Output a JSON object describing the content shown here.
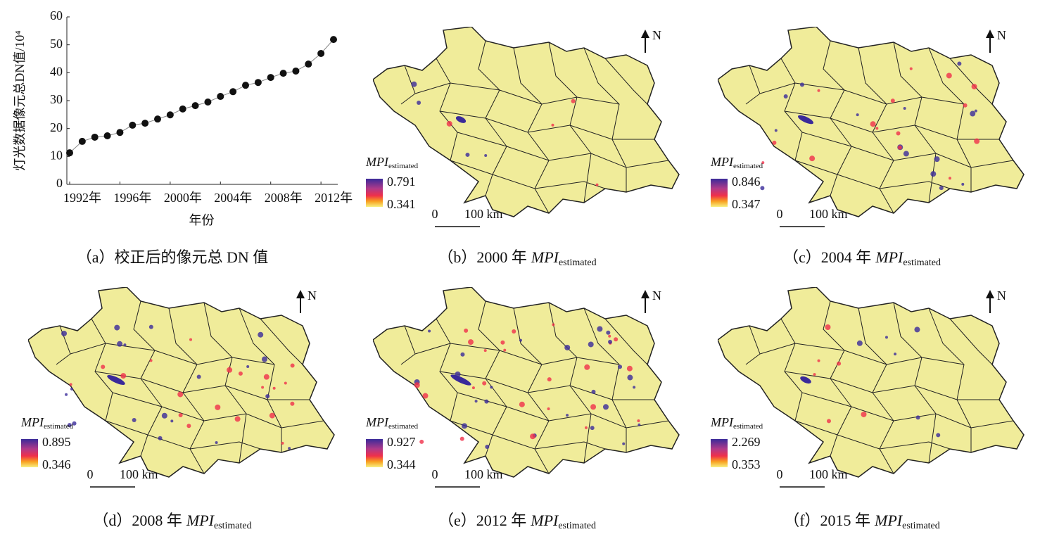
{
  "chart_data": {
    "type": "line",
    "y_label": "灯光数据像元总DN值/10⁴",
    "x_label": "年份",
    "caption": "（a）校正后的像元总 DN 值",
    "x": [
      1992,
      1993,
      1994,
      1995,
      1996,
      1997,
      1998,
      1999,
      2000,
      2001,
      2002,
      2003,
      2004,
      2005,
      2006,
      2007,
      2008,
      2009,
      2010,
      2011,
      2012,
      2013
    ],
    "values": [
      11.3,
      15.4,
      16.9,
      17.4,
      18.6,
      21.2,
      21.9,
      23.4,
      24.9,
      27.0,
      28.2,
      29.5,
      31.5,
      33.2,
      35.5,
      36.5,
      38.3,
      39.8,
      40.6,
      43.1,
      46.9,
      51.9
    ],
    "color": "#111111",
    "xlim": [
      1992,
      2013
    ],
    "ylim": [
      0,
      60
    ],
    "yticks": [
      0,
      10,
      20,
      30,
      40,
      50,
      60
    ],
    "xticks": [
      {
        "value": 1992,
        "label": "1992年"
      },
      {
        "value": 1996,
        "label": "1996年"
      },
      {
        "value": 2000,
        "label": "2000年"
      },
      {
        "value": 2004,
        "label": "2004年"
      },
      {
        "value": 2008,
        "label": "2008年"
      },
      {
        "value": 2012,
        "label": "2012年"
      }
    ]
  },
  "maps": [
    {
      "caption_prefix": "（b）2000 年",
      "caption_var": "MPI",
      "caption_sub": "estimated",
      "legend_var": "MPI",
      "legend_sub": "estimated",
      "max": 0.791,
      "min": 0.341,
      "scale_zero": "0",
      "scale_label": "100 km",
      "north": "N"
    },
    {
      "caption_prefix": "（c）2004 年",
      "caption_var": "MPI",
      "caption_sub": "estimated",
      "legend_var": "MPI",
      "legend_sub": "estimated",
      "max": 0.846,
      "min": 0.347,
      "scale_zero": "0",
      "scale_label": "100 km",
      "north": "N"
    },
    {
      "caption_prefix": "（d）2008 年",
      "caption_var": "MPI",
      "caption_sub": "estimated",
      "legend_var": "MPI",
      "legend_sub": "estimated",
      "max": 0.895,
      "min": 0.346,
      "scale_zero": "0",
      "scale_label": "100 km",
      "north": "N"
    },
    {
      "caption_prefix": "（e）2012 年",
      "caption_var": "MPI",
      "caption_sub": "estimated",
      "legend_var": "MPI",
      "legend_sub": "estimated",
      "max": 0.927,
      "min": 0.344,
      "scale_zero": "0",
      "scale_label": "100 km",
      "north": "N"
    },
    {
      "caption_prefix": "（f）2015 年",
      "caption_var": "MPI",
      "caption_sub": "estimated",
      "legend_var": "MPI",
      "legend_sub": "estimated",
      "max": 2.269,
      "min": 0.353,
      "scale_zero": "0",
      "scale_label": "100 km",
      "north": "N"
    }
  ]
}
